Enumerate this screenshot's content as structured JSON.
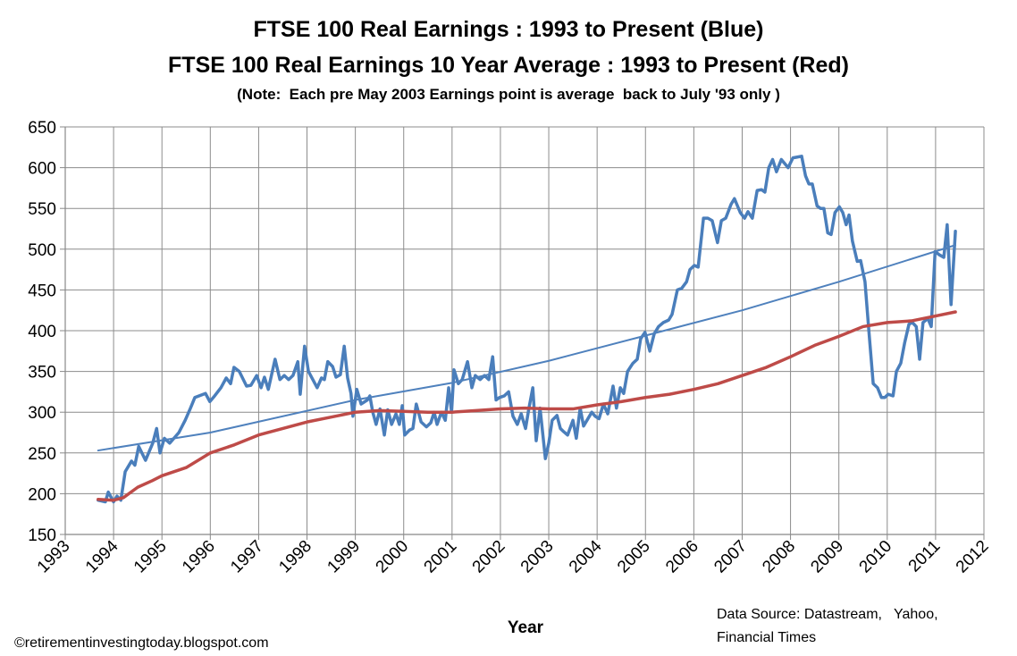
{
  "chart_data": {
    "type": "line",
    "title": "FTSE 100 Real Earnings : 1993 to Present (Blue)",
    "subtitle": "FTSE 100 Real Earnings 10 Year Average : 1993 to Present (Red)",
    "note": "(Note:  Each pre May 2003 Earnings point is average  back to July '93 only )",
    "x_label": "Year",
    "source": [
      "Data Source: Datastream,   Yahoo,",
      "Financial Times"
    ],
    "credit": "©retirementinvestingtoday.blogspot.com",
    "xlim": [
      1993,
      2012
    ],
    "xticks": [
      1993,
      1994,
      1995,
      1996,
      1997,
      1998,
      1999,
      2000,
      2001,
      2002,
      2003,
      2004,
      2005,
      2006,
      2007,
      2008,
      2009,
      2010,
      2011,
      2012
    ],
    "ylim": [
      150,
      650
    ],
    "yticks": [
      150,
      200,
      250,
      300,
      350,
      400,
      450,
      500,
      550,
      600,
      650
    ],
    "grid": true,
    "series": [
      {
        "color": "#4a7ebb",
        "linewidth": 3.5,
        "x": [
          1993.68,
          1993.83,
          1993.89,
          1994.0,
          1994.07,
          1994.15,
          1994.24,
          1994.37,
          1994.44,
          1994.52,
          1994.66,
          1994.81,
          1994.89,
          1994.96,
          1995.05,
          1995.16,
          1995.35,
          1995.48,
          1995.59,
          1995.68,
          1995.9,
          1995.99,
          1996.09,
          1996.22,
          1996.33,
          1996.42,
          1996.49,
          1996.6,
          1996.75,
          1996.84,
          1996.96,
          1997.05,
          1997.12,
          1997.2,
          1997.34,
          1997.44,
          1997.53,
          1997.62,
          1997.71,
          1997.81,
          1997.86,
          1997.95,
          1998.03,
          1998.12,
          1998.21,
          1998.3,
          1998.36,
          1998.43,
          1998.53,
          1998.6,
          1998.69,
          1998.77,
          1998.84,
          1998.91,
          1998.95,
          1999.03,
          1999.12,
          1999.25,
          1999.3,
          1999.36,
          1999.43,
          1999.51,
          1999.6,
          1999.67,
          1999.75,
          1999.84,
          1999.91,
          1999.97,
          2000.02,
          2000.12,
          2000.19,
          2000.26,
          2000.36,
          2000.47,
          2000.56,
          2000.63,
          2000.69,
          2000.78,
          2000.86,
          2000.93,
          2000.99,
          2001.04,
          2001.13,
          2001.21,
          2001.32,
          2001.41,
          2001.48,
          2001.58,
          2001.67,
          2001.76,
          2001.84,
          2001.91,
          2001.98,
          2002.08,
          2002.17,
          2002.26,
          2002.35,
          2002.43,
          2002.52,
          2002.59,
          2002.67,
          2002.74,
          2002.82,
          2002.93,
          2003.0,
          2003.07,
          2003.17,
          2003.24,
          2003.31,
          2003.39,
          2003.5,
          2003.57,
          2003.65,
          2003.72,
          2003.79,
          2003.89,
          2003.96,
          2004.04,
          2004.13,
          2004.22,
          2004.33,
          2004.4,
          2004.48,
          2004.55,
          2004.63,
          2004.74,
          2004.83,
          2004.9,
          2004.99,
          2005.09,
          2005.18,
          2005.27,
          2005.37,
          2005.48,
          2005.55,
          2005.66,
          2005.75,
          2005.85,
          2005.92,
          2006.01,
          2006.09,
          2006.2,
          2006.29,
          2006.38,
          2006.49,
          2006.57,
          2006.66,
          2006.77,
          2006.84,
          2006.96,
          2007.05,
          2007.12,
          2007.21,
          2007.31,
          2007.4,
          2007.47,
          2007.55,
          2007.63,
          2007.71,
          2007.81,
          2007.88,
          2007.95,
          2008.05,
          2008.14,
          2008.23,
          2008.31,
          2008.38,
          2008.45,
          2008.55,
          2008.62,
          2008.69,
          2008.77,
          2008.84,
          2008.92,
          2009.01,
          2009.08,
          2009.15,
          2009.21,
          2009.28,
          2009.38,
          2009.45,
          2009.54,
          2009.62,
          2009.71,
          2009.8,
          2009.88,
          2009.95,
          2010.02,
          2010.12,
          2010.19,
          2010.28,
          2010.36,
          2010.45,
          2010.52,
          2010.6,
          2010.67,
          2010.74,
          2010.84,
          2010.91,
          2010.99,
          2011.08,
          2011.17,
          2011.24,
          2011.32,
          2011.41
        ],
        "values": [
          192,
          190,
          202,
          190,
          197,
          192,
          227,
          240,
          235,
          258,
          241,
          262,
          280,
          250,
          268,
          262,
          275,
          290,
          305,
          318,
          323,
          313,
          320,
          330,
          342,
          335,
          355,
          350,
          332,
          333,
          345,
          330,
          343,
          328,
          365,
          340,
          345,
          340,
          345,
          362,
          322,
          381,
          350,
          340,
          330,
          342,
          340,
          362,
          356,
          343,
          346,
          381,
          342,
          323,
          295,
          328,
          310,
          315,
          320,
          300,
          285,
          304,
          272,
          303,
          285,
          298,
          285,
          308,
          272,
          278,
          280,
          310,
          288,
          282,
          287,
          300,
          285,
          300,
          290,
          330,
          300,
          352,
          335,
          340,
          362,
          330,
          345,
          340,
          345,
          340,
          368,
          315,
          318,
          320,
          325,
          295,
          285,
          298,
          280,
          305,
          330,
          265,
          305,
          243,
          262,
          290,
          296,
          280,
          276,
          272,
          290,
          268,
          305,
          283,
          290,
          300,
          295,
          292,
          310,
          298,
          332,
          305,
          330,
          323,
          350,
          360,
          365,
          390,
          398,
          375,
          396,
          405,
          410,
          413,
          420,
          450,
          452,
          460,
          475,
          480,
          478,
          538,
          538,
          535,
          508,
          535,
          538,
          555,
          562,
          545,
          538,
          546,
          538,
          572,
          573,
          570,
          600,
          610,
          595,
          610,
          605,
          600,
          612,
          613,
          614,
          590,
          580,
          580,
          553,
          550,
          550,
          520,
          518,
          545,
          552,
          545,
          530,
          542,
          510,
          485,
          486,
          460,
          400,
          335,
          330,
          318,
          318,
          322,
          320,
          350,
          360,
          385,
          408,
          410,
          405,
          365,
          410,
          415,
          405,
          497,
          493,
          490,
          530,
          432,
          522
        ]
      },
      {
        "color": "#be4b48",
        "linewidth": 3.5,
        "x": [
          1993.68,
          1994.0,
          1994.2,
          1994.5,
          1994.8,
          1995.0,
          1995.5,
          1996.0,
          1996.5,
          1997.0,
          1997.5,
          1998.0,
          1998.5,
          1999.0,
          1999.5,
          2000.0,
          2000.5,
          2001.0,
          2001.5,
          2002.0,
          2002.5,
          2003.0,
          2003.5,
          2004.0,
          2004.5,
          2005.0,
          2005.5,
          2006.0,
          2006.5,
          2007.0,
          2007.5,
          2008.0,
          2008.5,
          2009.0,
          2009.5,
          2010.0,
          2010.5,
          2011.0,
          2011.41
        ],
        "values": [
          193,
          192,
          195,
          208,
          216,
          222,
          232,
          250,
          260,
          272,
          280,
          288,
          294,
          300,
          302,
          301,
          300,
          300,
          302,
          304,
          305,
          304,
          304,
          309,
          313,
          318,
          322,
          328,
          335,
          345,
          355,
          368,
          382,
          393,
          405,
          410,
          412,
          418,
          423
        ]
      },
      {
        "color": "#4f81bd",
        "linewidth": 2,
        "x": [
          1993.68,
          1996.0,
          1999.0,
          2001.0,
          2003.0,
          2005.0,
          2007.0,
          2009.0,
          2011.41
        ],
        "values": [
          253,
          275,
          315,
          336,
          363,
          394,
          425,
          460,
          505
        ]
      }
    ]
  }
}
